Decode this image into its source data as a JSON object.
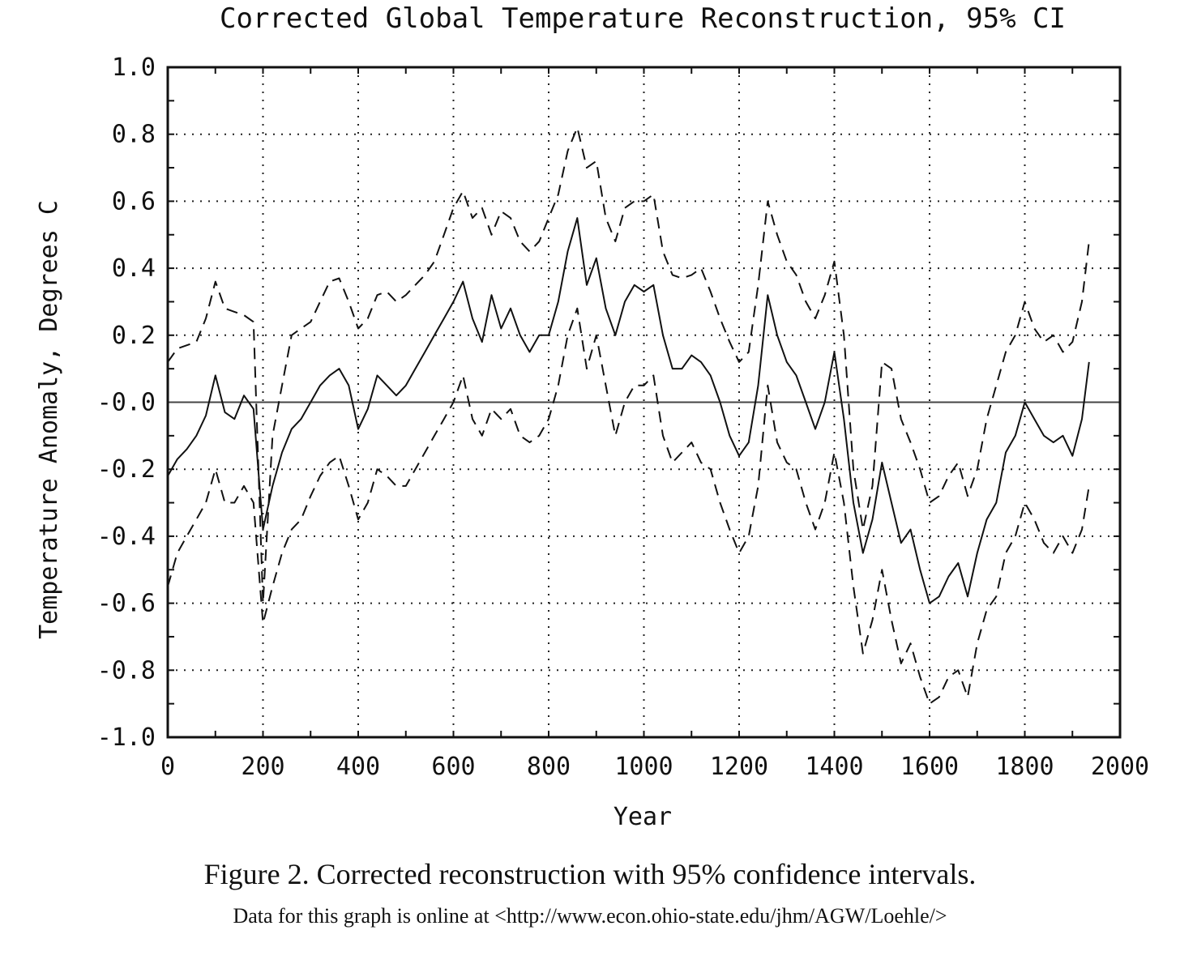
{
  "chart_data": {
    "type": "line",
    "title": "Corrected Global Temperature Reconstruction, 95% CI",
    "xlabel": "Year",
    "ylabel": "Temperature Anomaly, Degrees C",
    "xlim": [
      0,
      2000
    ],
    "ylim": [
      -1.0,
      1.0
    ],
    "x_ticks": [
      0,
      200,
      400,
      600,
      800,
      1000,
      1200,
      1400,
      1600,
      1800,
      2000
    ],
    "x_tick_labels": [
      "0",
      "200",
      "400",
      "600",
      "800",
      "1000",
      "1200",
      "1400",
      "1600",
      "1800",
      "2000"
    ],
    "y_ticks": [
      1.0,
      0.8,
      0.6,
      0.4,
      0.2,
      0.0,
      -0.2,
      -0.4,
      -0.6,
      -0.8,
      -1.0
    ],
    "y_tick_labels": [
      "1.0",
      "0.8",
      "0.6",
      "0.4",
      "0.2",
      "-0.0",
      "-0.2",
      "-0.4",
      "-0.6",
      "-0.8",
      "-1.0"
    ],
    "grid": true,
    "zero_line": true,
    "x": [
      0,
      20,
      40,
      60,
      80,
      100,
      120,
      140,
      160,
      180,
      200,
      220,
      240,
      260,
      280,
      300,
      320,
      340,
      360,
      380,
      400,
      420,
      440,
      460,
      480,
      500,
      520,
      540,
      560,
      580,
      600,
      620,
      640,
      660,
      680,
      700,
      720,
      740,
      760,
      780,
      800,
      820,
      840,
      860,
      880,
      900,
      920,
      940,
      960,
      980,
      1000,
      1020,
      1040,
      1060,
      1080,
      1100,
      1120,
      1140,
      1160,
      1180,
      1200,
      1220,
      1240,
      1260,
      1280,
      1300,
      1320,
      1340,
      1360,
      1380,
      1400,
      1420,
      1440,
      1460,
      1480,
      1500,
      1520,
      1540,
      1560,
      1580,
      1600,
      1620,
      1640,
      1660,
      1680,
      1700,
      1720,
      1740,
      1760,
      1780,
      1800,
      1820,
      1840,
      1860,
      1880,
      1900,
      1920,
      1935
    ],
    "series": [
      {
        "style": "dashed",
        "values": [
          0.12,
          0.16,
          0.17,
          0.18,
          0.25,
          0.36,
          0.28,
          0.27,
          0.26,
          0.24,
          -0.6,
          -0.1,
          0.05,
          0.2,
          0.22,
          0.24,
          0.3,
          0.36,
          0.37,
          0.3,
          0.22,
          0.25,
          0.32,
          0.33,
          0.3,
          0.32,
          0.35,
          0.38,
          0.42,
          0.5,
          0.58,
          0.63,
          0.55,
          0.58,
          0.5,
          0.57,
          0.55,
          0.48,
          0.45,
          0.48,
          0.55,
          0.62,
          0.75,
          0.82,
          0.7,
          0.72,
          0.55,
          0.48,
          0.58,
          0.6,
          0.6,
          0.62,
          0.45,
          0.38,
          0.37,
          0.38,
          0.4,
          0.33,
          0.25,
          0.18,
          0.12,
          0.15,
          0.35,
          0.6,
          0.5,
          0.42,
          0.38,
          0.3,
          0.25,
          0.32,
          0.42,
          0.2,
          -0.2,
          -0.38,
          -0.25,
          0.12,
          0.1,
          -0.05,
          -0.12,
          -0.2,
          -0.3,
          -0.28,
          -0.22,
          -0.18,
          -0.28,
          -0.2,
          -0.05,
          0.05,
          0.15,
          0.2,
          0.3,
          0.22,
          0.18,
          0.2,
          0.15,
          0.18,
          0.3,
          0.48
        ]
      },
      {
        "style": "solid",
        "values": [
          -0.22,
          -0.17,
          -0.14,
          -0.1,
          -0.04,
          0.08,
          -0.03,
          -0.05,
          0.02,
          -0.02,
          -0.38,
          -0.25,
          -0.15,
          -0.08,
          -0.05,
          0.0,
          0.05,
          0.08,
          0.1,
          0.05,
          -0.08,
          -0.02,
          0.08,
          0.05,
          0.02,
          0.05,
          0.1,
          0.15,
          0.2,
          0.25,
          0.3,
          0.36,
          0.25,
          0.18,
          0.32,
          0.22,
          0.28,
          0.2,
          0.15,
          0.2,
          0.2,
          0.3,
          0.45,
          0.55,
          0.35,
          0.43,
          0.28,
          0.2,
          0.3,
          0.35,
          0.33,
          0.35,
          0.2,
          0.1,
          0.1,
          0.14,
          0.12,
          0.08,
          0.0,
          -0.1,
          -0.16,
          -0.12,
          0.05,
          0.32,
          0.2,
          0.12,
          0.08,
          0.0,
          -0.08,
          0.0,
          0.15,
          -0.05,
          -0.3,
          -0.45,
          -0.35,
          -0.18,
          -0.3,
          -0.42,
          -0.38,
          -0.5,
          -0.6,
          -0.58,
          -0.52,
          -0.48,
          -0.58,
          -0.45,
          -0.35,
          -0.3,
          -0.15,
          -0.1,
          0.0,
          -0.05,
          -0.1,
          -0.12,
          -0.1,
          -0.16,
          -0.05,
          0.12
        ]
      },
      {
        "style": "dashed",
        "values": [
          -0.55,
          -0.45,
          -0.4,
          -0.35,
          -0.3,
          -0.2,
          -0.3,
          -0.3,
          -0.25,
          -0.3,
          -0.66,
          -0.55,
          -0.45,
          -0.38,
          -0.35,
          -0.28,
          -0.22,
          -0.18,
          -0.16,
          -0.25,
          -0.35,
          -0.3,
          -0.2,
          -0.22,
          -0.25,
          -0.25,
          -0.2,
          -0.15,
          -0.1,
          -0.05,
          0.0,
          0.08,
          -0.05,
          -0.1,
          -0.02,
          -0.05,
          -0.02,
          -0.1,
          -0.12,
          -0.1,
          -0.05,
          0.05,
          0.2,
          0.28,
          0.1,
          0.2,
          0.05,
          -0.1,
          0.0,
          0.05,
          0.05,
          0.08,
          -0.1,
          -0.18,
          -0.15,
          -0.12,
          -0.18,
          -0.2,
          -0.3,
          -0.38,
          -0.45,
          -0.4,
          -0.25,
          0.05,
          -0.12,
          -0.18,
          -0.2,
          -0.3,
          -0.38,
          -0.3,
          -0.15,
          -0.3,
          -0.55,
          -0.75,
          -0.65,
          -0.5,
          -0.65,
          -0.78,
          -0.72,
          -0.82,
          -0.9,
          -0.88,
          -0.82,
          -0.8,
          -0.88,
          -0.72,
          -0.62,
          -0.58,
          -0.45,
          -0.4,
          -0.3,
          -0.35,
          -0.42,
          -0.45,
          -0.4,
          -0.45,
          -0.38,
          -0.25
        ]
      }
    ]
  },
  "caption": {
    "main": "Figure 2. Corrected reconstruction with 95% confidence intervals.",
    "source": "Data for this graph is online at <http://www.econ.ohio-state.edu/jhm/AGW/Loehle/>"
  }
}
